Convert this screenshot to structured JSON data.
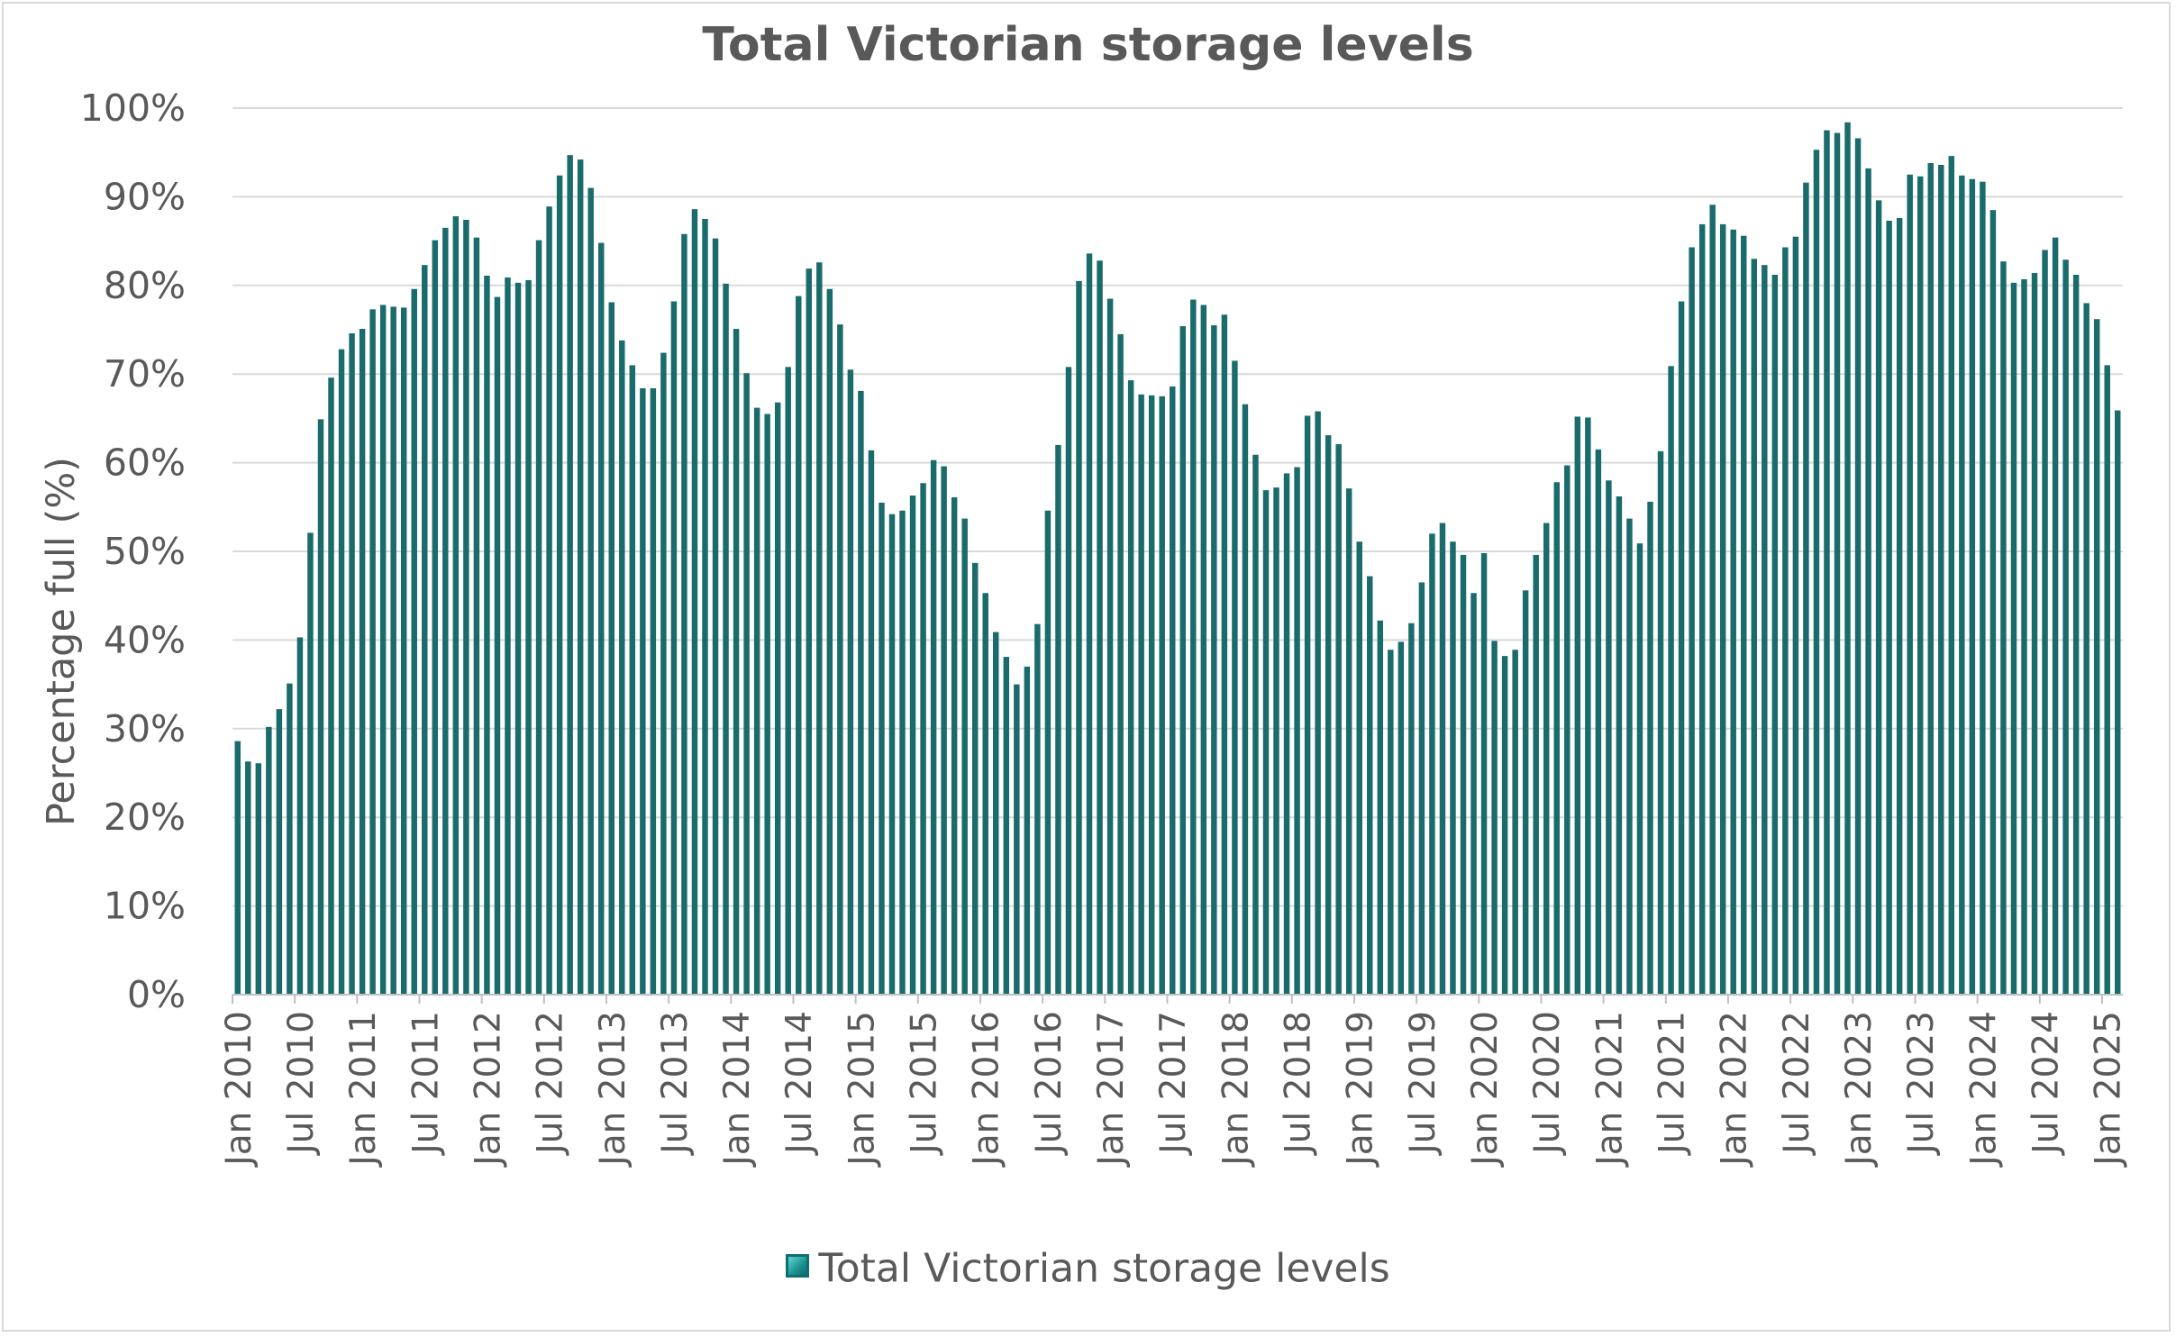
{
  "chart_data": {
    "type": "bar",
    "title": "Total Victorian storage levels",
    "xlabel": "",
    "ylabel": "Percentage full (%)",
    "ylim": [
      0,
      100
    ],
    "y_ticks": [
      "0%",
      "10%",
      "20%",
      "30%",
      "40%",
      "50%",
      "60%",
      "70%",
      "80%",
      "90%",
      "100%"
    ],
    "x_tick_labels": [
      "Jan 2010",
      "Jul 2010",
      "Jan 2011",
      "Jul 2011",
      "Jan 2012",
      "Jul 2012",
      "Jan 2013",
      "Jul 2013",
      "Jan 2014",
      "Jul 2014",
      "Jan 2015",
      "Jul 2015",
      "Jan 2016",
      "Jul 2016",
      "Jan 2017",
      "Jul 2017",
      "Jan 2018",
      "Jul 2018",
      "Jan 2019",
      "Jul 2019",
      "Jan 2020",
      "Jul 2020",
      "Jan 2021",
      "Jul 2021",
      "Jan 2022",
      "Jul 2022",
      "Jan 2023",
      "Jul 2023",
      "Jan 2024",
      "Jul 2024",
      "Jan 2025"
    ],
    "grid": true,
    "legend_position": "bottom",
    "bar_color": "#1a6b6b",
    "series": [
      {
        "name": "Total Victorian storage levels",
        "values": [
          28.6,
          26.3,
          26.1,
          30.2,
          32.2,
          35.1,
          40.3,
          52.1,
          64.9,
          69.6,
          72.8,
          74.6,
          75.1,
          77.3,
          77.8,
          77.6,
          77.5,
          79.6,
          82.3,
          85.1,
          86.5,
          87.8,
          87.4,
          85.4,
          81.1,
          78.7,
          80.9,
          80.3,
          80.6,
          85.1,
          88.9,
          92.4,
          94.7,
          94.2,
          91.0,
          84.8,
          78.1,
          73.8,
          71.0,
          68.4,
          68.4,
          72.4,
          78.2,
          85.8,
          88.6,
          87.5,
          85.3,
          80.2,
          75.1,
          70.1,
          66.2,
          65.5,
          66.8,
          70.8,
          78.8,
          81.9,
          82.6,
          79.6,
          75.6,
          70.5,
          68.1,
          61.4,
          55.5,
          54.2,
          54.6,
          56.3,
          57.7,
          60.3,
          59.6,
          56.1,
          53.7,
          48.7,
          45.3,
          40.9,
          38.1,
          35.0,
          37.0,
          41.8,
          54.6,
          62.0,
          70.8,
          80.5,
          83.6,
          82.8,
          78.5,
          74.5,
          69.3,
          67.7,
          67.6,
          67.5,
          68.6,
          75.4,
          78.4,
          77.8,
          75.5,
          76.7,
          71.5,
          66.6,
          60.9,
          56.9,
          57.2,
          58.8,
          59.5,
          65.3,
          65.8,
          63.1,
          62.1,
          57.1,
          51.1,
          47.2,
          42.2,
          38.9,
          39.8,
          41.9,
          46.5,
          52.0,
          53.2,
          51.1,
          49.6,
          45.3,
          49.8,
          39.9,
          38.2,
          38.9,
          45.6,
          49.6,
          53.2,
          57.8,
          59.7,
          65.2,
          65.1,
          61.5,
          58.0,
          56.2,
          53.7,
          50.9,
          55.6,
          61.3,
          70.9,
          78.2,
          84.3,
          86.9,
          89.1,
          86.9,
          86.3,
          85.6,
          83.0,
          82.3,
          81.2,
          84.3,
          85.5,
          91.6,
          95.3,
          97.5,
          97.2,
          98.4,
          96.6,
          93.2,
          89.6,
          87.3,
          87.6,
          92.5,
          92.3,
          93.8,
          93.6,
          94.6,
          92.4,
          92.0,
          91.7,
          88.5,
          82.7,
          80.3,
          80.7,
          81.4,
          84.0,
          85.4,
          82.9,
          81.2,
          78.0,
          76.2,
          71.0,
          65.9
        ]
      }
    ]
  },
  "legend": {
    "label": "Total Victorian storage levels"
  }
}
